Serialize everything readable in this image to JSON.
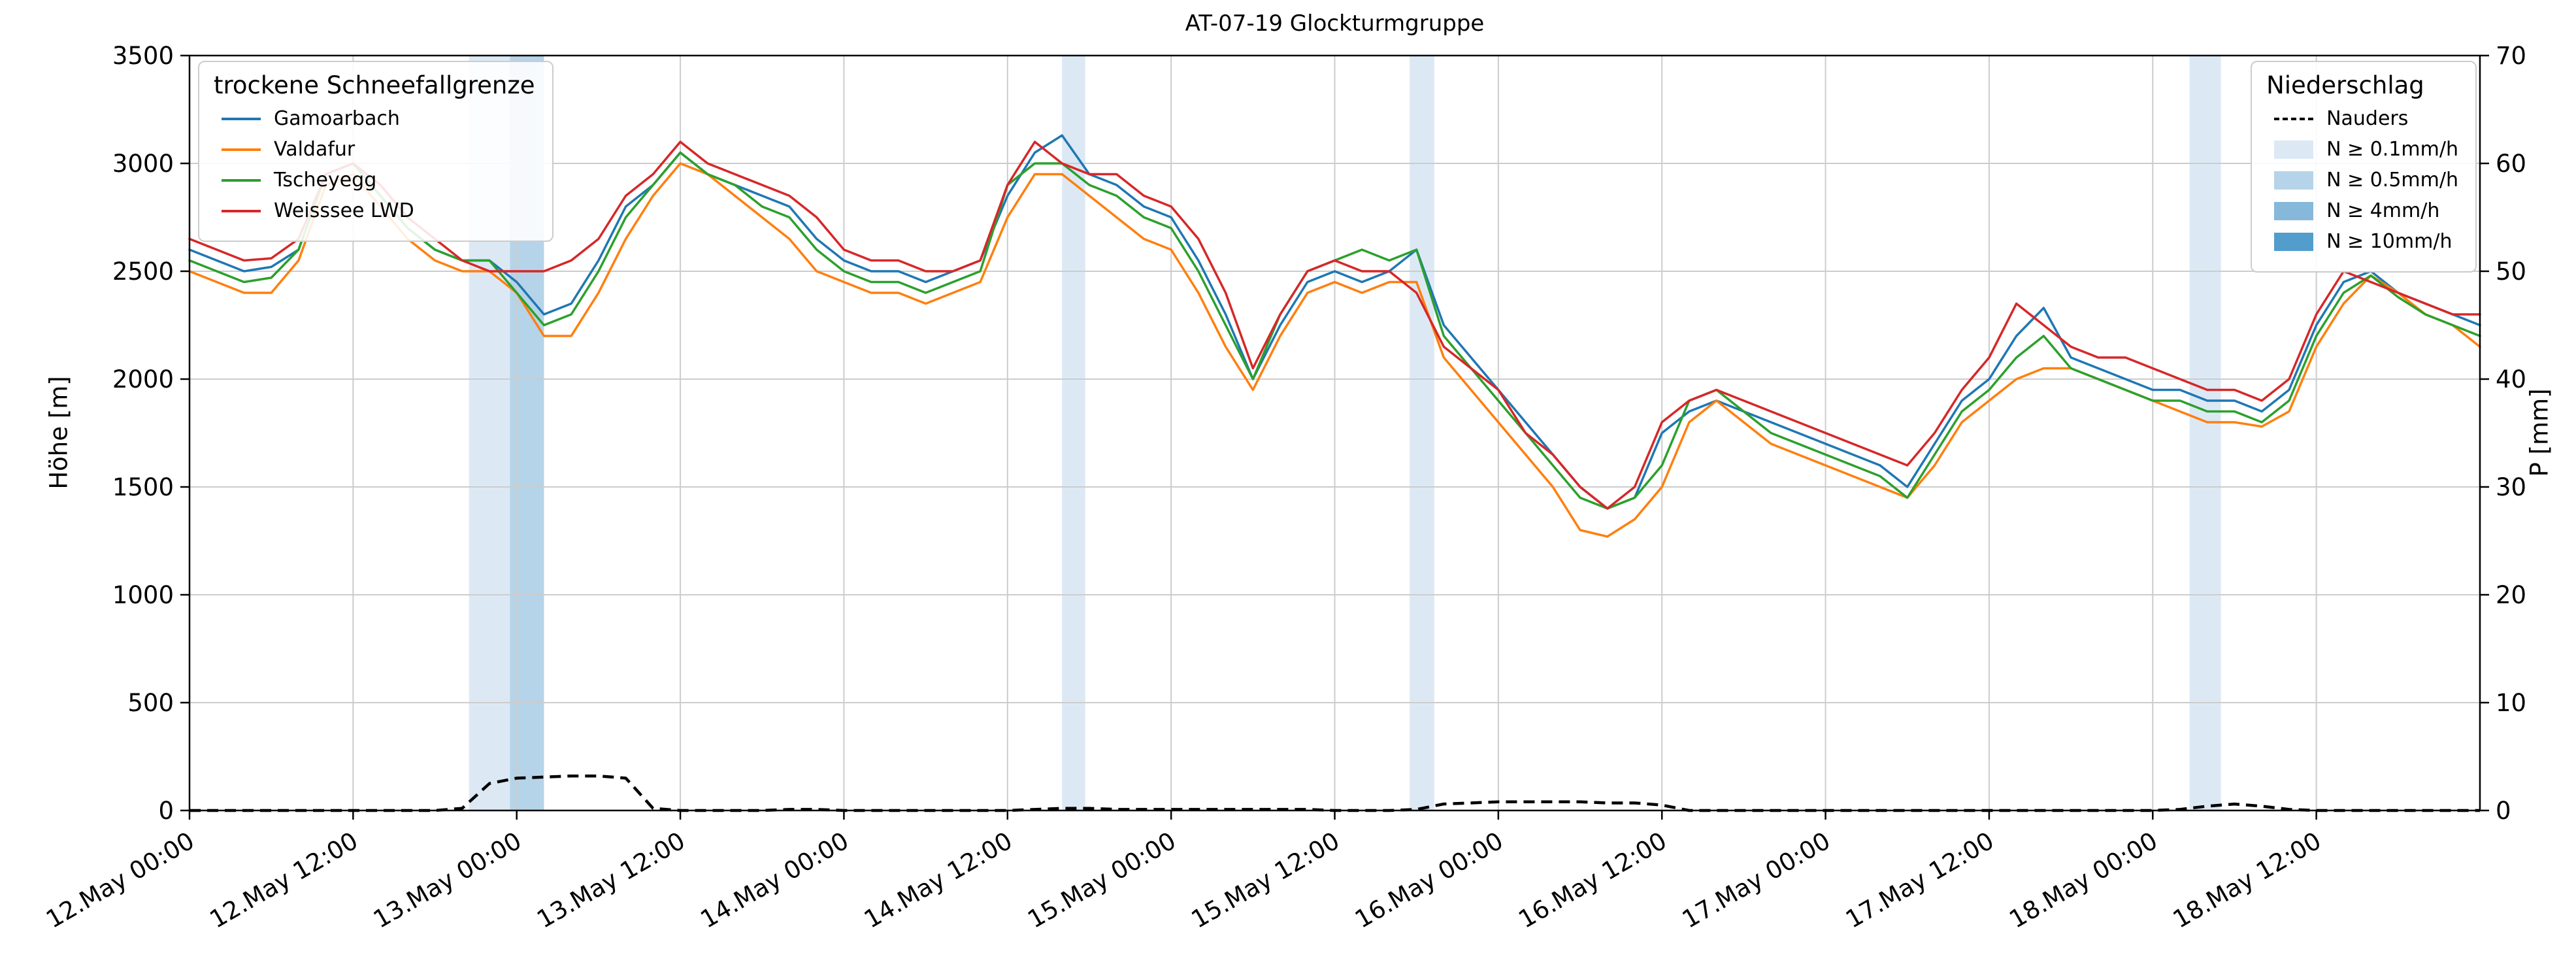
{
  "left_legend": {
    "title": "trockene Schneefallgrenze",
    "items": [
      {
        "label": "Gamoarbach",
        "color": "#1f77b4"
      },
      {
        "label": "Valdafur",
        "color": "#ff7f0e"
      },
      {
        "label": "Tscheyegg",
        "color": "#2ca02c"
      },
      {
        "label": "Weisssee LWD",
        "color": "#d62728"
      }
    ]
  },
  "right_legend": {
    "title": "Niederschlag",
    "line_item": {
      "label": "Nauders",
      "color": "#000000",
      "style": "dashed"
    },
    "band_items": [
      {
        "label": "N ≥ 0.1mm/h",
        "color": "#dce9f5"
      },
      {
        "label": "N ≥ 0.5mm/h",
        "color": "#b5d4e9"
      },
      {
        "label": "N ≥ 4mm/h",
        "color": "#85b8da"
      },
      {
        "label": "N ≥ 10mm/h",
        "color": "#539dcc"
      }
    ]
  },
  "chart_data": {
    "type": "line",
    "title": "AT-07-19 Glockturmgruppe",
    "xlabel": "",
    "ylabel_left": "Höhe [m]",
    "ylabel_right": "P [mm]",
    "ylim_left": [
      0,
      3500
    ],
    "ylim_right": [
      0,
      70
    ],
    "grid": true,
    "background": "#ffffff",
    "grid_color": "#cccccc",
    "x_hours_range": [
      0,
      168
    ],
    "x_tick_hours": [
      0,
      12,
      24,
      36,
      48,
      60,
      72,
      84,
      96,
      108,
      120,
      132,
      144,
      156
    ],
    "x_tick_labels": [
      "12.May 00:00",
      "12.May 12:00",
      "13.May 00:00",
      "13.May 12:00",
      "14.May 00:00",
      "14.May 12:00",
      "15.May 00:00",
      "15.May 12:00",
      "16.May 00:00",
      "16.May 12:00",
      "17.May 00:00",
      "17.May 12:00",
      "18.May 00:00",
      "18.May 12:00"
    ],
    "y_ticks_left": [
      0,
      500,
      1000,
      1500,
      2000,
      2500,
      3000,
      3500
    ],
    "y_ticks_right": [
      0,
      10,
      20,
      30,
      40,
      50,
      60,
      70
    ],
    "x_hours": [
      0,
      2,
      4,
      6,
      8,
      10,
      12,
      14,
      16,
      18,
      20,
      22,
      24,
      26,
      28,
      30,
      32,
      34,
      36,
      38,
      40,
      42,
      44,
      46,
      48,
      50,
      52,
      54,
      56,
      58,
      60,
      62,
      64,
      66,
      68,
      70,
      72,
      74,
      76,
      78,
      80,
      82,
      84,
      86,
      88,
      90,
      92,
      94,
      96,
      98,
      100,
      102,
      104,
      106,
      108,
      110,
      112,
      114,
      116,
      118,
      120,
      122,
      124,
      126,
      128,
      130,
      132,
      134,
      136,
      138,
      140,
      142,
      144,
      146,
      148,
      150,
      152,
      154,
      156,
      158,
      160,
      162,
      164,
      166,
      168
    ],
    "series": [
      {
        "name": "Gamoarbach",
        "color": "#1f77b4",
        "axis": "left",
        "values": [
          2600,
          2550,
          2500,
          2520,
          2600,
          2950,
          3000,
          2850,
          2700,
          2600,
          2550,
          2550,
          2450,
          2300,
          2350,
          2550,
          2800,
          2900,
          3050,
          2950,
          2900,
          2850,
          2800,
          2650,
          2550,
          2500,
          2500,
          2450,
          2500,
          2550,
          2850,
          3050,
          3130,
          2950,
          2900,
          2800,
          2750,
          2550,
          2300,
          2000,
          2250,
          2450,
          2500,
          2450,
          2500,
          2600,
          2250,
          2100,
          1950,
          1800,
          1650,
          1500,
          1400,
          1450,
          1750,
          1850,
          1900,
          1850,
          1800,
          1750,
          1700,
          1650,
          1600,
          1500,
          1700,
          1900,
          2000,
          2200,
          2330,
          2100,
          2050,
          2000,
          1950,
          1950,
          1900,
          1900,
          1850,
          1950,
          2250,
          2450,
          2500,
          2400,
          2350,
          2300,
          2250
        ]
      },
      {
        "name": "Valdafur",
        "color": "#ff7f0e",
        "axis": "left",
        "values": [
          2500,
          2450,
          2400,
          2400,
          2550,
          2900,
          2950,
          2800,
          2650,
          2550,
          2500,
          2500,
          2400,
          2200,
          2200,
          2400,
          2650,
          2850,
          3000,
          2950,
          2850,
          2750,
          2650,
          2500,
          2450,
          2400,
          2400,
          2350,
          2400,
          2450,
          2750,
          2950,
          2950,
          2850,
          2750,
          2650,
          2600,
          2400,
          2150,
          1950,
          2200,
          2400,
          2450,
          2400,
          2450,
          2450,
          2100,
          1950,
          1800,
          1650,
          1500,
          1300,
          1270,
          1350,
          1500,
          1800,
          1900,
          1800,
          1700,
          1650,
          1600,
          1550,
          1500,
          1450,
          1600,
          1800,
          1900,
          2000,
          2050,
          2050,
          2000,
          1950,
          1900,
          1850,
          1800,
          1800,
          1780,
          1850,
          2150,
          2350,
          2480,
          2400,
          2300,
          2250,
          2150
        ]
      },
      {
        "name": "Tscheyegg",
        "color": "#2ca02c",
        "axis": "left",
        "values": [
          2550,
          2500,
          2450,
          2470,
          2600,
          2950,
          3000,
          2850,
          2700,
          2600,
          2550,
          2550,
          2400,
          2250,
          2300,
          2500,
          2750,
          2900,
          3050,
          2950,
          2900,
          2800,
          2750,
          2600,
          2500,
          2450,
          2450,
          2400,
          2450,
          2500,
          2900,
          3000,
          3000,
          2900,
          2850,
          2750,
          2700,
          2500,
          2250,
          2000,
          2300,
          2500,
          2550,
          2600,
          2550,
          2600,
          2200,
          2050,
          1900,
          1750,
          1600,
          1450,
          1400,
          1450,
          1600,
          1900,
          1950,
          1850,
          1750,
          1700,
          1650,
          1600,
          1550,
          1450,
          1650,
          1850,
          1950,
          2100,
          2200,
          2050,
          2000,
          1950,
          1900,
          1900,
          1850,
          1850,
          1800,
          1900,
          2200,
          2400,
          2480,
          2380,
          2300,
          2250,
          2200
        ]
      },
      {
        "name": "Weisssee LWD",
        "color": "#d62728",
        "axis": "left",
        "values": [
          2650,
          2600,
          2550,
          2560,
          2650,
          2950,
          3000,
          2900,
          2750,
          2650,
          2550,
          2500,
          2500,
          2500,
          2550,
          2650,
          2850,
          2950,
          3100,
          3000,
          2950,
          2900,
          2850,
          2750,
          2600,
          2550,
          2550,
          2500,
          2500,
          2550,
          2900,
          3100,
          3000,
          2950,
          2950,
          2850,
          2800,
          2650,
          2400,
          2050,
          2300,
          2500,
          2550,
          2500,
          2500,
          2400,
          2150,
          2050,
          1950,
          1750,
          1650,
          1500,
          1400,
          1500,
          1800,
          1900,
          1950,
          1900,
          1850,
          1800,
          1750,
          1700,
          1650,
          1600,
          1750,
          1950,
          2100,
          2350,
          2250,
          2150,
          2100,
          2100,
          2050,
          2000,
          1950,
          1950,
          1900,
          2000,
          2300,
          2500,
          2450,
          2400,
          2350,
          2300,
          2300
        ]
      }
    ],
    "precip_line": {
      "name": "Nauders",
      "color": "#000000",
      "style": "dashed",
      "axis": "right",
      "values": [
        0,
        0,
        0,
        0,
        0,
        0,
        0,
        0,
        0,
        0,
        0.2,
        2.5,
        3.0,
        3.1,
        3.2,
        3.2,
        3.0,
        0.2,
        0,
        0,
        0,
        0,
        0.1,
        0.1,
        0,
        0,
        0,
        0,
        0,
        0,
        0,
        0.1,
        0.2,
        0.2,
        0.1,
        0.1,
        0.1,
        0.1,
        0.1,
        0.1,
        0.1,
        0.1,
        0,
        0,
        0,
        0.1,
        0.6,
        0.7,
        0.8,
        0.8,
        0.8,
        0.8,
        0.7,
        0.7,
        0.5,
        0,
        0,
        0,
        0,
        0,
        0,
        0,
        0,
        0,
        0,
        0,
        0,
        0,
        0,
        0,
        0,
        0,
        0,
        0.1,
        0.4,
        0.6,
        0.4,
        0.1,
        0,
        0,
        0,
        0,
        0,
        0,
        0
      ]
    },
    "precip_bands": [
      {
        "start_hour": 20.5,
        "end_hour": 23.5,
        "level": "N ≥ 0.1mm/h",
        "color": "#dce9f5"
      },
      {
        "start_hour": 23.5,
        "end_hour": 26.0,
        "level": "N ≥ 0.5mm/h",
        "color": "#b5d4e9"
      },
      {
        "start_hour": 64.0,
        "end_hour": 65.7,
        "level": "N ≥ 0.1mm/h",
        "color": "#dce9f5"
      },
      {
        "start_hour": 89.5,
        "end_hour": 91.3,
        "level": "N ≥ 0.1mm/h",
        "color": "#dce9f5"
      },
      {
        "start_hour": 146.7,
        "end_hour": 149.0,
        "level": "N ≥ 0.1mm/h",
        "color": "#dce9f5"
      }
    ]
  }
}
